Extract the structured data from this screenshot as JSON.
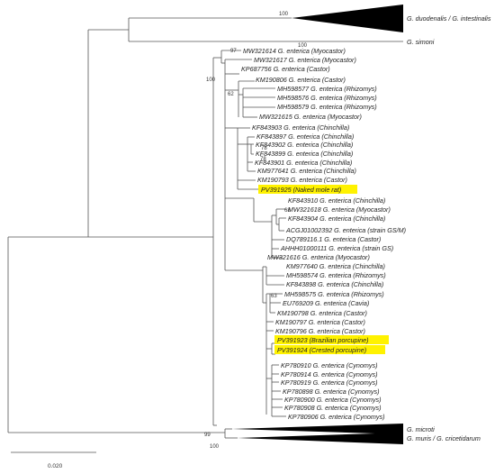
{
  "figure": {
    "taxa": {
      "duodenalis": "G. duodenalis / G. intestinalis",
      "simoni": "G. simoni",
      "mw321614": "MW321614 G. enterica (Myocastor)",
      "mw321617": "MW321617 G. enterica (Myocastor)",
      "kp687756": "KP687756 G. enterica (Castor)",
      "km190806": "KM190806 G. enterica (Castor)",
      "mh598577": "MH598577 G. enterica (Rhizomys)",
      "mh598576": "MH598576 G. enterica (Rhizomys)",
      "mh598579": "MH598579 G. enterica (Rhizomys)",
      "mw321615": "MW321615 G. enterica (Myocastor)",
      "kf843903": "KF843903 G. enterica (Chinchilla)",
      "kf843897": "KF843897 G. enterica (Chinchilla)",
      "kf843902": "KF843902 G. enterica (Chinchilla)",
      "kf843899": "KF843899 G. enterica (Chinchilla)",
      "kf843901": "KF843901 G. enterica (Chinchilla)",
      "km977641": "KM977641 G. enterica (Chinchilla)",
      "km190793": "KM190793 G. enterica (Castor)",
      "pv391925": "PV391925 (Naked mole rat)",
      "kf843910": "KF843910 G. enterica (Chinchilla)",
      "mw321618": "MW321618 G. enterica (Myocastor)",
      "kf843904": "KF843904 G. enterica (Chinchilla)",
      "acgj": "ACGJ01002392 G. enterica (strain GS/M)",
      "dq789116": "DQ789116.1 G. enterica (Castor)",
      "ahhh": "AHHH01000111 G. enterica (strain GS)",
      "mw321616": "MW321616 G. enterica (Myocastor)",
      "km977640": "KM977640 G. enterica (Chinchilla)",
      "mh598574": "MH598574 G. enterica (Rhizomys)",
      "kf843898": "KF843898 G. enterica (Chinchilla)",
      "mh598575": "MH598575 G. enterica (Rhizomys)",
      "eu769209": "EU769209 G. enterica (Cavia)",
      "km190798": "KM190798 G. enterica (Castor)",
      "km190797": "KM190797 G. enterica (Castor)",
      "km190796": "KM190796 G. enterica (Castor)",
      "pv391923": "PV391923 (Brazilian porcupine)",
      "pv391924": "PV391924 (Crested porcupine)",
      "kp780910": "KP780910 G. enterica (Cynomys)",
      "kp780914": "KP780914 G. enterica (Cynomys)",
      "kp780919": "KP780919 G. enterica (Cynomys)",
      "kp780898": "KP780898 G. enterica (Cynomys)",
      "kp780900": "KP780900 G. enterica (Cynomys)",
      "kp780908": "KP780908 G. enterica (Cynomys)",
      "kp780906": "KP780906 G. enterica (Cynomys)",
      "microti": "G. microti",
      "muris": "G. muris / G. cricetidarum"
    },
    "bootstrap": {
      "duodenalis": "100",
      "simoni": "100",
      "myocastor": "97",
      "castor": "100",
      "rhizomys": "62",
      "chinchilla_a": "78",
      "chinchilla_b": "78",
      "chinchilla_c": "68",
      "rhizomys_b": "63",
      "microti": "99",
      "muris": "100"
    },
    "scale_bar": "0.020",
    "highlight_color": "#fff200"
  }
}
